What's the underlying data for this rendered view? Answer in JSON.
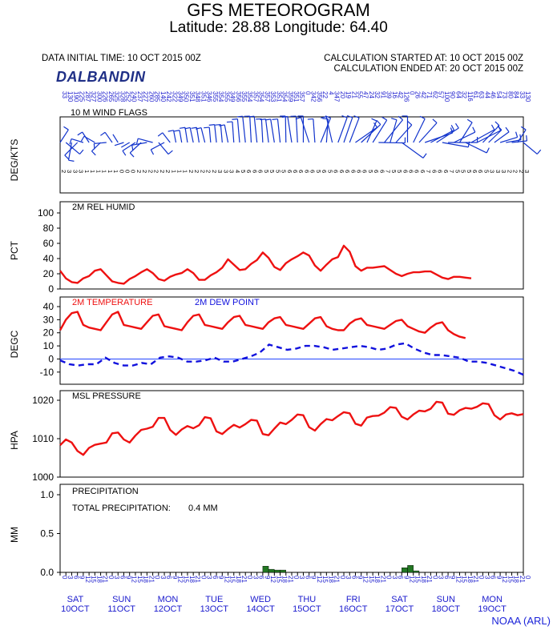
{
  "header": {
    "title": "GFS METEOROGRAM",
    "location": "Latitude: 28.88 Longitude:  64.40",
    "init_time": "DATA INITIAL TIME: 10 OCT 2015 00Z",
    "calc_started": "CALCULATION STARTED AT: 10 OCT 2015 00Z",
    "calc_ended": "CALCULATION ENDED AT: 20 OCT 2015 00Z",
    "station": "DALBANDIN",
    "credit": "NOAA (ARL)"
  },
  "colors": {
    "temperature": "#ee1111",
    "dewpoint": "#1111dd",
    "humidity": "#ee1111",
    "pressure": "#ee1111",
    "precip": "#227722",
    "zero_line": "#2244ff",
    "day_labels": "#1a1acd"
  },
  "x_axis": {
    "hours": [
      "0",
      "3",
      "6",
      "9",
      "12",
      "15",
      "18",
      "21"
    ],
    "days": [
      {
        "dow": "SAT",
        "date": "10OCT"
      },
      {
        "dow": "SUN",
        "date": "11OCT"
      },
      {
        "dow": "MON",
        "date": "12OCT"
      },
      {
        "dow": "TUE",
        "date": "13OCT"
      },
      {
        "dow": "WED",
        "date": "14OCT"
      },
      {
        "dow": "THU",
        "date": "15OCT"
      },
      {
        "dow": "FRI",
        "date": "16OCT"
      },
      {
        "dow": "SAT",
        "date": "17OCT"
      },
      {
        "dow": "SUN",
        "date": "18OCT"
      },
      {
        "dow": "MON",
        "date": "19OCT"
      }
    ]
  },
  "chart_data": [
    {
      "type": "wind-barbs",
      "title": "10 M  WIND FLAGS",
      "ylabel": "DEG/KTS",
      "x_step_hours": 3,
      "directions": [
        33,
        130,
        190,
        225,
        287,
        327,
        300,
        226,
        265,
        325,
        328,
        252,
        240,
        237,
        227,
        260,
        285,
        140,
        242,
        322,
        349,
        350,
        351,
        348,
        351,
        346,
        355,
        354,
        355,
        349,
        356,
        355,
        354,
        357,
        354,
        357,
        353,
        351,
        354,
        359,
        351,
        357,
        0,
        342,
        356,
        22,
        4,
        347,
        20,
        19,
        21,
        55,
        47,
        24,
        32,
        91,
        39,
        16,
        42,
        126,
        0,
        26,
        42,
        71,
        62,
        57,
        100,
        90,
        64,
        32,
        116,
        61,
        63,
        44,
        46,
        54,
        73,
        80,
        84
      ],
      "speeds": [
        2,
        3,
        3,
        3,
        1,
        1,
        1,
        1,
        1,
        1,
        0,
        0,
        0,
        2,
        2,
        2,
        2,
        2,
        2,
        1,
        1,
        1,
        2,
        2,
        2,
        2,
        2,
        3,
        3,
        3,
        4,
        5,
        6,
        6,
        6,
        5,
        5,
        5,
        5,
        6,
        6,
        6,
        6,
        6,
        5,
        6,
        5,
        6,
        6,
        6,
        6,
        6,
        6,
        5,
        6,
        6,
        7,
        5,
        5,
        6,
        6,
        6,
        6,
        7,
        6,
        6,
        6,
        7,
        5,
        5,
        5,
        6,
        6,
        5,
        3,
        3,
        3,
        2,
        2
      ]
    },
    {
      "type": "line",
      "title": "2M REL HUMID",
      "ylabel": "PCT",
      "ylim": [
        0,
        100
      ],
      "yticks": [
        0,
        20,
        40,
        60,
        80,
        100
      ],
      "x_step_hours": 3,
      "series": [
        {
          "name": "2M REL HUMID",
          "values": [
            24,
            14,
            9,
            8,
            14,
            17,
            24,
            26,
            18,
            10,
            8,
            7,
            13,
            17,
            22,
            26,
            21,
            13,
            11,
            16,
            19,
            21,
            26,
            21,
            12,
            12,
            18,
            22,
            28,
            39,
            32,
            25,
            26,
            33,
            38,
            48,
            41,
            29,
            25,
            34,
            39,
            43,
            48,
            44,
            31,
            24,
            32,
            39,
            42,
            57,
            49,
            30,
            24,
            28,
            28,
            29,
            30,
            25,
            20,
            17,
            20,
            22,
            22,
            23,
            23,
            19,
            15,
            13,
            16,
            16,
            15,
            14
          ]
        }
      ]
    },
    {
      "type": "line",
      "title": "",
      "ylabel": "DEGC",
      "ylim": [
        -15,
        40
      ],
      "yticks": [
        -10,
        0,
        10,
        20,
        30,
        40
      ],
      "x_step_hours": 3,
      "series": [
        {
          "name": "2M TEMPERATURE",
          "values": [
            22,
            30,
            35,
            36,
            26,
            24,
            23,
            22,
            28,
            34,
            36,
            26,
            25,
            24,
            23,
            28,
            33,
            34,
            25,
            24,
            23,
            22,
            28,
            33,
            34,
            26,
            25,
            24,
            23,
            28,
            32,
            33,
            26,
            25,
            24,
            23,
            28,
            31,
            32,
            26,
            25,
            24,
            23,
            27,
            31,
            32,
            25,
            23,
            22,
            22,
            27,
            30,
            31,
            26,
            25,
            24,
            23,
            26,
            29,
            30,
            25,
            23,
            21,
            20,
            24,
            27,
            28,
            22,
            19,
            17,
            16
          ]
        },
        {
          "name": "2M   DEW POINT",
          "values": [
            -1,
            -4,
            -5,
            -4,
            -4,
            1,
            -3,
            -5,
            -5,
            -3,
            -4,
            1,
            2,
            1,
            -2,
            -2,
            -1,
            1,
            -2,
            -2,
            0,
            2,
            5,
            11,
            9,
            7,
            8,
            10,
            10,
            9,
            7,
            8,
            9,
            10,
            9,
            7,
            8,
            11,
            12,
            8,
            5,
            3,
            3,
            2,
            1,
            -2,
            -2,
            -3,
            -5,
            -7,
            -9,
            -12
          ]
        }
      ]
    },
    {
      "type": "line",
      "title": "MSL PRESSURE",
      "ylabel": "HPA",
      "ylim": [
        1000,
        1020
      ],
      "yticks": [
        1000,
        1010,
        1020
      ],
      "x_step_hours": 3,
      "series": [
        {
          "name": "MSL PRESSURE",
          "values": [
            1008.3,
            1009.8,
            1009.0,
            1006.8,
            1005.8,
            1007.6,
            1008.4,
            1008.7,
            1009.0,
            1011.4,
            1011.6,
            1009.8,
            1009.0,
            1010.8,
            1012.3,
            1012.6,
            1013.1,
            1015.4,
            1015.4,
            1012.3,
            1011.0,
            1012.4,
            1013.3,
            1012.7,
            1013.5,
            1015.6,
            1015.3,
            1011.9,
            1011.2,
            1012.5,
            1013.6,
            1012.9,
            1013.8,
            1014.9,
            1014.7,
            1011.2,
            1010.9,
            1012.6,
            1014.2,
            1013.8,
            1014.9,
            1016.3,
            1016.1,
            1013.0,
            1012.1,
            1013.8,
            1015.1,
            1014.8,
            1015.9,
            1016.9,
            1016.6,
            1013.9,
            1013.4,
            1015.5,
            1015.9,
            1016.0,
            1016.8,
            1018.2,
            1018.0,
            1015.7,
            1015.0,
            1016.3,
            1017.3,
            1017.1,
            1017.8,
            1019.6,
            1019.4,
            1016.5,
            1016.2,
            1017.4,
            1018.0,
            1017.8,
            1018.3,
            1019.2,
            1019.0,
            1016.1,
            1015.0,
            1016.3,
            1016.6,
            1016.1,
            1016.4
          ]
        }
      ]
    },
    {
      "type": "bar",
      "title": "PRECIPITATION",
      "ylabel": "MM",
      "ylim": [
        0,
        1.0
      ],
      "yticks": [
        "0.0",
        "0.5",
        "1.0"
      ],
      "total_label": "TOTAL PRECIPITATION:",
      "total_value": "0.4 MM",
      "x_step_hours": 3,
      "bars": [
        {
          "start": 35,
          "value": 0.08
        },
        {
          "start": 36,
          "value": 0.04
        },
        {
          "start": 37,
          "value": 0.03
        },
        {
          "start": 38,
          "value": 0.03
        },
        {
          "start": 59,
          "value": 0.06
        },
        {
          "start": 60,
          "value": 0.09
        },
        {
          "start": 61,
          "value": 0.02
        }
      ]
    }
  ],
  "legend": {
    "temperature": "2M TEMPERATURE",
    "dewpoint": "2M   DEW POINT"
  }
}
